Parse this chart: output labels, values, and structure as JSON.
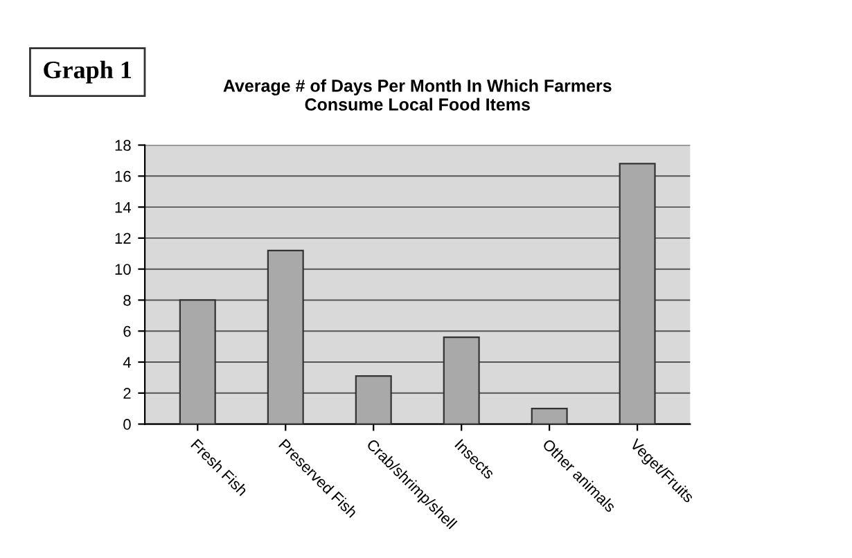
{
  "chart_data": {
    "type": "bar",
    "title": "Average # of Days Per Month In Which Farmers\nConsume Local Food Items",
    "categories": [
      "Fresh Fish",
      "Preserved Fish",
      "Crab/shrimp/shell",
      "Insects",
      "Other animals",
      "Veget/Fruits"
    ],
    "values": [
      8.0,
      11.2,
      3.1,
      5.6,
      1.0,
      16.8
    ],
    "color": "#a9a9a9",
    "ylim": [
      0,
      18
    ],
    "yticks": [
      0,
      2,
      4,
      6,
      8,
      10,
      12,
      14,
      16,
      18
    ],
    "grid": "y",
    "annotations": [
      "Graph 1"
    ]
  }
}
